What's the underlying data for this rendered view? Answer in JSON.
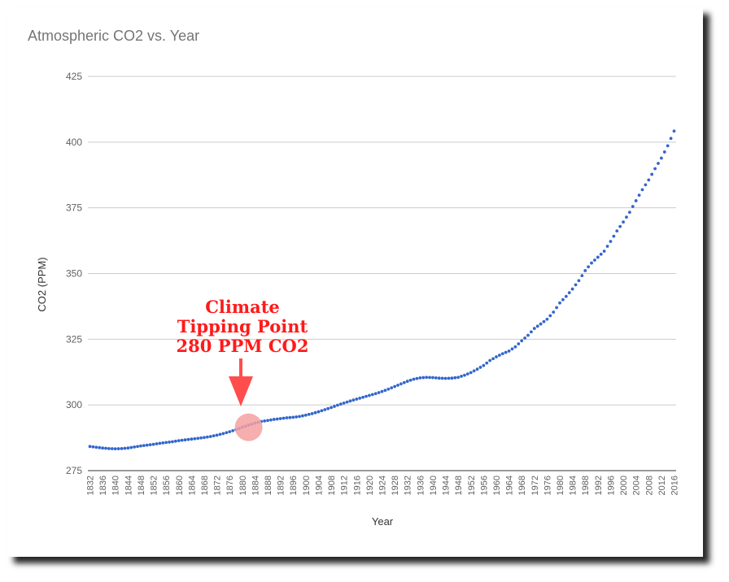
{
  "chart_data": {
    "type": "scatter",
    "title": "Atmospheric CO2 vs. Year",
    "xlabel": "Year",
    "ylabel": "CO2 (PPM)",
    "ylim": [
      275,
      425
    ],
    "yticks": [
      "425",
      "400",
      "375",
      "350",
      "325",
      "300",
      "275"
    ],
    "xlim": [
      1832,
      2016
    ],
    "xticks": [
      "1832",
      "1836",
      "1840",
      "1844",
      "1848",
      "1852",
      "1856",
      "1860",
      "1864",
      "1868",
      "1872",
      "1876",
      "1880",
      "1884",
      "1888",
      "1892",
      "1896",
      "1900",
      "1904",
      "1908",
      "1912",
      "1916",
      "1920",
      "1924",
      "1928",
      "1932",
      "1936",
      "1940",
      "1944",
      "1948",
      "1952",
      "1956",
      "1960",
      "1964",
      "1968",
      "1972",
      "1976",
      "1980",
      "1984",
      "1988",
      "1992",
      "1996",
      "2000",
      "2004",
      "2008",
      "2012",
      "2016"
    ],
    "grid": true,
    "legend": "none",
    "marker_color": "#3366cc",
    "series": [
      {
        "x": [
          1832,
          1834,
          1836,
          1838,
          1840,
          1842,
          1844,
          1846,
          1848,
          1850,
          1852,
          1854,
          1856,
          1858,
          1860,
          1862,
          1864,
          1866,
          1868,
          1870,
          1872,
          1874,
          1876,
          1878,
          1880,
          1882,
          1884,
          1886,
          1888,
          1890,
          1892,
          1894,
          1896,
          1898,
          1900,
          1902,
          1904,
          1906,
          1908,
          1910,
          1912,
          1914,
          1916,
          1918,
          1920,
          1922,
          1924,
          1926,
          1928,
          1930,
          1932,
          1934,
          1936,
          1938,
          1940,
          1942,
          1944,
          1946,
          1948,
          1950,
          1952,
          1954,
          1956,
          1958,
          1960,
          1962,
          1964,
          1966,
          1968,
          1970,
          1972,
          1974,
          1976,
          1978,
          1980,
          1982,
          1984,
          1986,
          1988,
          1990,
          1992,
          1994,
          1996,
          1998,
          2000,
          2002,
          2004,
          2006,
          2008,
          2010,
          2012,
          2014,
          2016
        ],
        "y": [
          284.2,
          283.9,
          283.6,
          283.4,
          283.3,
          283.4,
          283.6,
          284.0,
          284.4,
          284.7,
          285.0,
          285.4,
          285.7,
          286.0,
          286.4,
          286.7,
          287.0,
          287.3,
          287.6,
          288.0,
          288.5,
          289.1,
          289.8,
          290.6,
          291.5,
          292.3,
          293.1,
          293.7,
          294.1,
          294.5,
          294.8,
          295.1,
          295.3,
          295.6,
          296.1,
          296.7,
          297.4,
          298.2,
          299.0,
          299.9,
          300.7,
          301.5,
          302.2,
          302.9,
          303.6,
          304.3,
          305.1,
          306.0,
          307.0,
          308.0,
          309.0,
          309.8,
          310.3,
          310.5,
          310.4,
          310.2,
          310.1,
          310.2,
          310.5,
          311.3,
          312.3,
          313.6,
          315.0,
          316.9,
          318.3,
          319.5,
          320.5,
          322.1,
          324.4,
          326.5,
          329.1,
          330.8,
          332.6,
          335.3,
          338.8,
          341.3,
          344.1,
          347.3,
          351.1,
          354.0,
          356.2,
          358.5,
          362.2,
          366.2,
          369.6,
          373.3,
          377.7,
          381.9,
          385.6,
          389.9,
          393.9,
          398.6,
          404.2
        ]
      }
    ],
    "annotation": {
      "lines": [
        "Climate",
        "Tipping Point",
        "280 PPM CO2"
      ],
      "color": "#ff1a1a",
      "x": 1882,
      "y": 291.5
    }
  }
}
